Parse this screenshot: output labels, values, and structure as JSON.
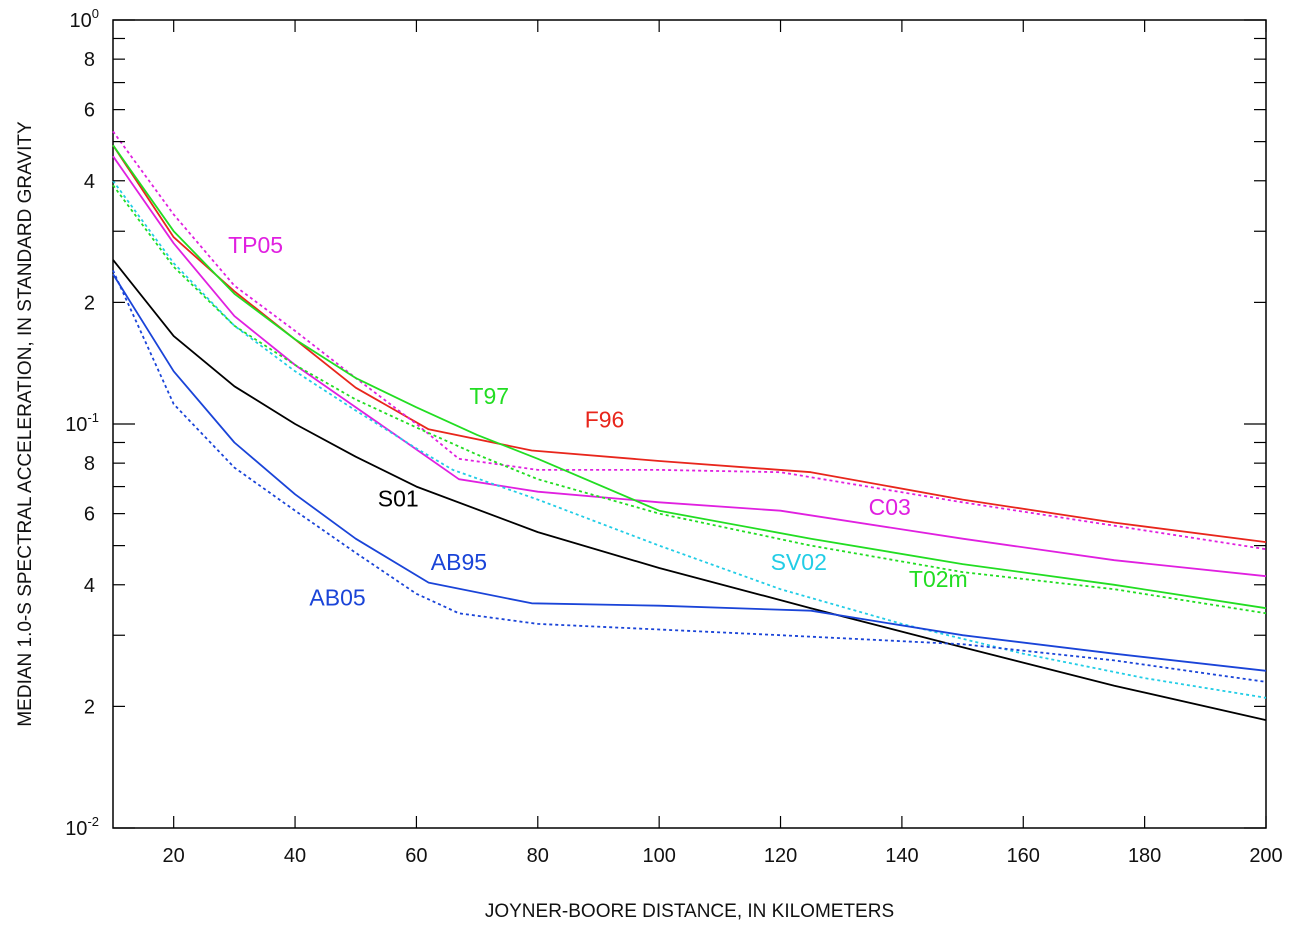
{
  "chart_data": {
    "type": "line",
    "title": "",
    "xlabel": "JOYNER-BOORE DISTANCE, IN KILOMETERS",
    "ylabel": "MEDIAN 1.0-S SPECTRAL ACCELERATION, IN STANDARD GRAVITY",
    "xlim": [
      10,
      200
    ],
    "ylim": [
      0.01,
      1
    ],
    "yscale": "log",
    "grid": false,
    "x_ticks": [
      20,
      40,
      60,
      80,
      100,
      120,
      140,
      160,
      180,
      200
    ],
    "x_tick_labels": [
      "20",
      "40",
      "60",
      "80",
      "100",
      "120",
      "140",
      "160",
      "180",
      "200"
    ],
    "y_decade_ticks": [
      {
        "value": 1,
        "base": "10",
        "exp": "0"
      },
      {
        "value": 0.1,
        "base": "10",
        "exp": "-1"
      },
      {
        "value": 0.01,
        "base": "10",
        "exp": "-2"
      }
    ],
    "y_minor_ticks": [
      {
        "value": 0.8,
        "label": "8"
      },
      {
        "value": 0.6,
        "label": "6"
      },
      {
        "value": 0.4,
        "label": "4"
      },
      {
        "value": 0.2,
        "label": "2"
      },
      {
        "value": 0.08,
        "label": "8"
      },
      {
        "value": 0.06,
        "label": "6"
      },
      {
        "value": 0.04,
        "label": "4"
      },
      {
        "value": 0.02,
        "label": "2"
      },
      {
        "value": 0.9,
        "label": ""
      },
      {
        "value": 0.7,
        "label": ""
      },
      {
        "value": 0.5,
        "label": ""
      },
      {
        "value": 0.3,
        "label": ""
      },
      {
        "value": 0.09,
        "label": ""
      },
      {
        "value": 0.07,
        "label": ""
      },
      {
        "value": 0.05,
        "label": ""
      },
      {
        "value": 0.03,
        "label": ""
      }
    ],
    "series": [
      {
        "name": "F96",
        "color": "#e8261c",
        "dash": false,
        "label_at": [
          91,
          0.098
        ],
        "x": [
          10,
          20,
          30,
          40,
          50,
          62,
          79,
          100,
          125,
          150,
          175,
          200
        ],
        "y": [
          0.49,
          0.29,
          0.213,
          0.162,
          0.123,
          0.097,
          0.086,
          0.081,
          0.076,
          0.065,
          0.057,
          0.051
        ]
      },
      {
        "name": "",
        "color": "#e020e0",
        "dash": true,
        "x": [
          10,
          20,
          30,
          40,
          50,
          60,
          67,
          80,
          100,
          120,
          150,
          175,
          200
        ],
        "y": [
          0.53,
          0.33,
          0.22,
          0.17,
          0.13,
          0.1,
          0.082,
          0.077,
          0.077,
          0.076,
          0.064,
          0.056,
          0.049
        ]
      },
      {
        "name": "C03",
        "color": "#e020e0",
        "dash": false,
        "label_at": [
          138,
          0.0595
        ],
        "x": [
          10,
          20,
          30,
          40,
          50,
          57,
          67,
          80,
          100,
          120,
          150,
          175,
          200
        ],
        "y": [
          0.46,
          0.28,
          0.185,
          0.14,
          0.11,
          0.093,
          0.073,
          0.068,
          0.064,
          0.061,
          0.052,
          0.046,
          0.042
        ]
      },
      {
        "name": "T97",
        "color": "#22dd22",
        "dash": false,
        "label_at": [
          72,
          0.112
        ],
        "x": [
          10,
          20,
          30,
          40,
          50,
          60,
          70,
          80,
          100,
          125,
          150,
          175,
          200
        ],
        "y": [
          0.49,
          0.3,
          0.21,
          0.162,
          0.13,
          0.11,
          0.094,
          0.082,
          0.061,
          0.052,
          0.045,
          0.04,
          0.035
        ]
      },
      {
        "name": "T02m",
        "color": "#22dd22",
        "dash": true,
        "label_at": [
          146,
          0.0395
        ],
        "x": [
          10,
          20,
          30,
          40,
          50,
          60,
          70,
          80,
          100,
          125,
          150,
          175,
          200
        ],
        "y": [
          0.39,
          0.245,
          0.175,
          0.14,
          0.115,
          0.098,
          0.084,
          0.073,
          0.06,
          0.05,
          0.043,
          0.039,
          0.034
        ]
      },
      {
        "name": "SV02",
        "color": "#22cde6",
        "dash": true,
        "label_at": [
          123,
          0.0435
        ],
        "x": [
          10,
          20,
          30,
          40,
          50,
          60,
          66,
          80,
          100,
          120,
          140,
          160,
          180,
          200
        ],
        "y": [
          0.4,
          0.25,
          0.175,
          0.135,
          0.108,
          0.087,
          0.077,
          0.065,
          0.05,
          0.039,
          0.032,
          0.027,
          0.0235,
          0.021
        ]
      },
      {
        "name": "S01",
        "color": "#000000",
        "dash": false,
        "label_at": [
          57,
          0.0625
        ],
        "x": [
          10,
          20,
          30,
          40,
          50,
          60,
          80,
          100,
          125,
          150,
          175,
          200
        ],
        "y": [
          0.255,
          0.165,
          0.124,
          0.1,
          0.083,
          0.07,
          0.054,
          0.044,
          0.035,
          0.028,
          0.0225,
          0.0185
        ]
      },
      {
        "name": "AB95",
        "color": "#1a44d8",
        "dash": false,
        "label_at": [
          67,
          0.0435
        ],
        "x": [
          10,
          20,
          30,
          40,
          50,
          62,
          79,
          100,
          125,
          150,
          175,
          200
        ],
        "y": [
          0.235,
          0.135,
          0.09,
          0.067,
          0.052,
          0.0405,
          0.036,
          0.0355,
          0.0345,
          0.03,
          0.027,
          0.0245
        ]
      },
      {
        "name": "AB05",
        "color": "#1a44d8",
        "dash": true,
        "label_at": [
          47,
          0.0355
        ],
        "x": [
          10,
          20,
          30,
          40,
          50,
          60,
          67,
          80,
          100,
          120,
          150,
          175,
          200
        ],
        "y": [
          0.24,
          0.112,
          0.078,
          0.061,
          0.048,
          0.038,
          0.034,
          0.032,
          0.031,
          0.03,
          0.0285,
          0.026,
          0.023
        ]
      }
    ],
    "annotations": [
      {
        "text": "TP05",
        "x": 33.5,
        "y": 0.265,
        "color": "#e020e0"
      }
    ]
  }
}
